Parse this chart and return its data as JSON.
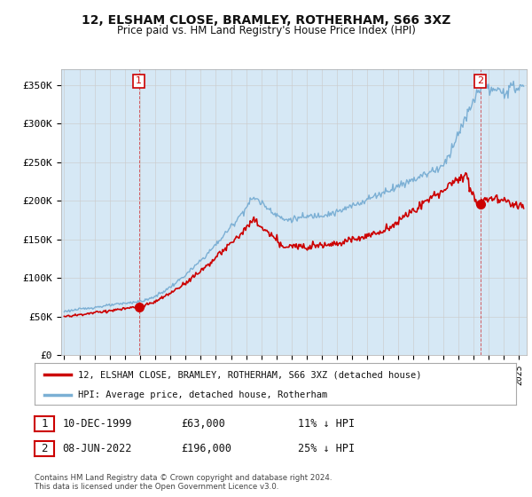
{
  "title": "12, ELSHAM CLOSE, BRAMLEY, ROTHERHAM, S66 3XZ",
  "subtitle": "Price paid vs. HM Land Registry's House Price Index (HPI)",
  "ylabel_ticks": [
    "£0",
    "£50K",
    "£100K",
    "£150K",
    "£200K",
    "£250K",
    "£300K",
    "£350K"
  ],
  "ytick_vals": [
    0,
    50000,
    100000,
    150000,
    200000,
    250000,
    300000,
    350000
  ],
  "ylim": [
    0,
    370000
  ],
  "xlim_start": 1994.8,
  "xlim_end": 2025.5,
  "hpi_color": "#7bafd4",
  "hpi_fill_color": "#d6e8f5",
  "price_color": "#cc0000",
  "marker_color": "#cc0000",
  "transaction1": {
    "year": 1999.92,
    "price": 63000,
    "label": "1"
  },
  "transaction2": {
    "year": 2022.44,
    "price": 196000,
    "label": "2"
  },
  "legend_line1": "12, ELSHAM CLOSE, BRAMLEY, ROTHERHAM, S66 3XZ (detached house)",
  "legend_line2": "HPI: Average price, detached house, Rotherham",
  "note1_date": "10-DEC-1999",
  "note1_price": "£63,000",
  "note1_hpi": "11% ↓ HPI",
  "note2_date": "08-JUN-2022",
  "note2_price": "£196,000",
  "note2_hpi": "25% ↓ HPI",
  "footer": "Contains HM Land Registry data © Crown copyright and database right 2024.\nThis data is licensed under the Open Government Licence v3.0.",
  "background_color": "#ffffff",
  "grid_color": "#cccccc"
}
